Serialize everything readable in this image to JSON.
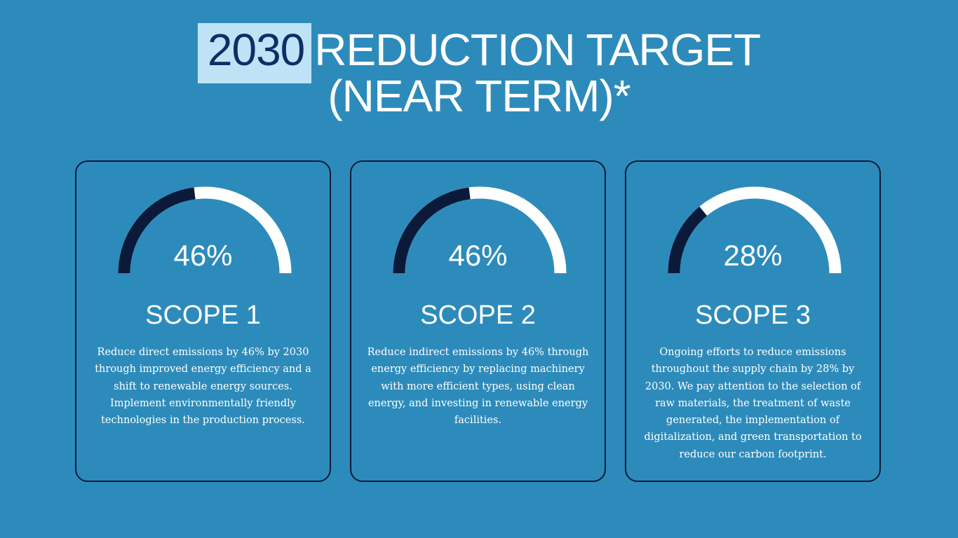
{
  "title": {
    "highlight": "2030",
    "line1_rest": "REDUCTION TARGET",
    "line2": "(NEAR TERM)*"
  },
  "colors": {
    "background": "#2d8bbb",
    "dark": "#0b1a3a",
    "track": "#ffffff"
  },
  "cards": [
    {
      "percent_label": "46%",
      "percent": 46,
      "scope": "SCOPE 1",
      "description": "Reduce direct emissions by 46% by 2030 through improved energy efficiency and a shift to renewable energy sources. Implement environmentally friendly technologies in the production process."
    },
    {
      "percent_label": "46%",
      "percent": 46,
      "scope": "SCOPE 2",
      "description": "Reduce indirect emissions by 46% through energy efficiency by replacing machinery with more efficient types, using clean energy, and investing in renewable energy facilities."
    },
    {
      "percent_label": "28%",
      "percent": 28,
      "scope": "SCOPE 3",
      "description": "Ongoing efforts to reduce emissions throughout the supply chain by 28% by 2030. We pay attention to the selection of raw materials, the treatment of waste generated, the implementation of digitalization, and green transportation to reduce our carbon footprint."
    }
  ]
}
